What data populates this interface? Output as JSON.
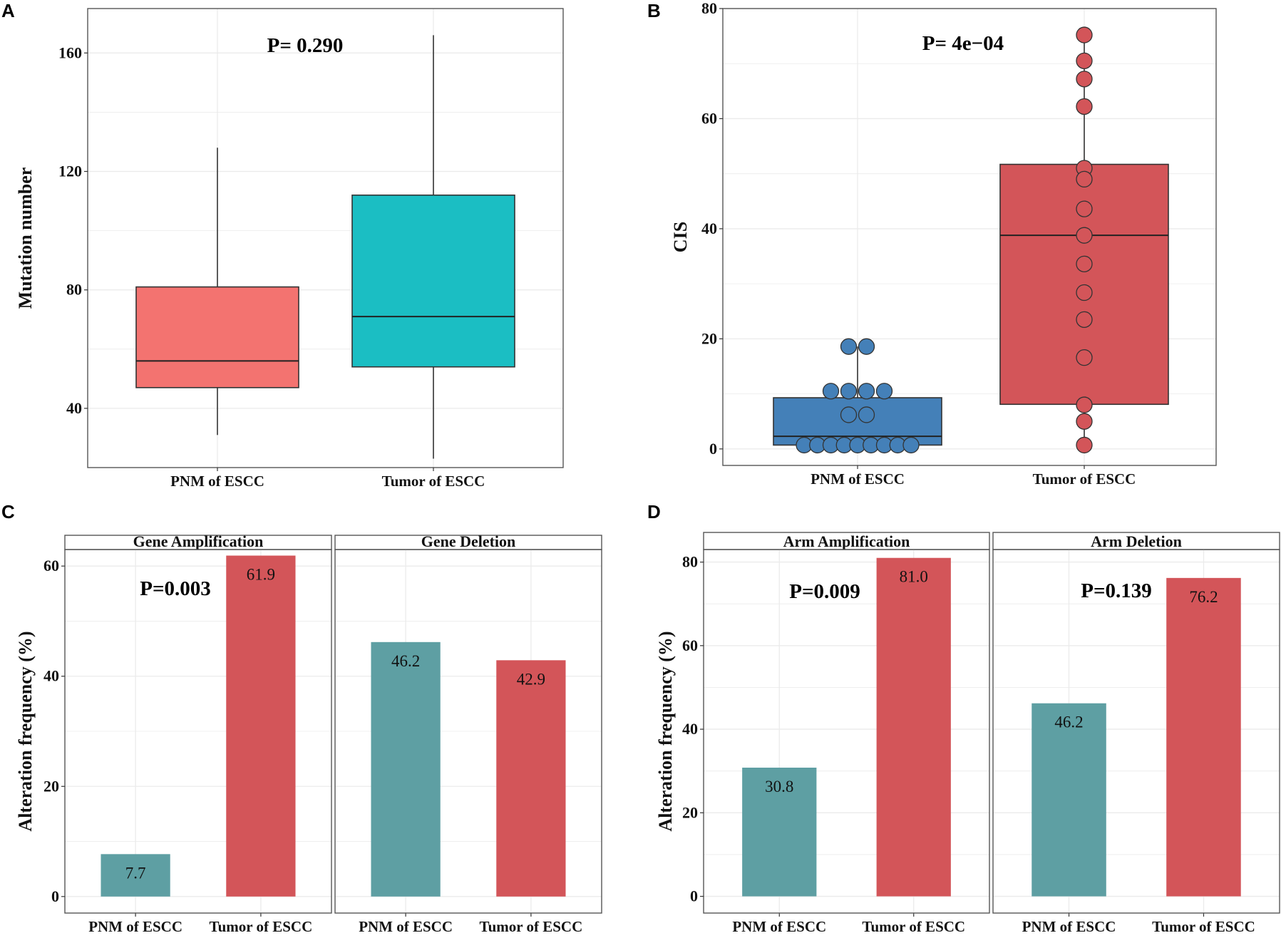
{
  "colors": {
    "pnm_box": "#F37370",
    "tumor_box": "#1BBEC3",
    "cis_pnm": "#4480B8",
    "cis_tumor": "#D35559",
    "bar_pnm": "#5E9FA3",
    "bar_tumor": "#D35559",
    "grid": "#EBEBEB",
    "frame": "#555555"
  },
  "chart_data": [
    {
      "panel": "A",
      "type": "box",
      "ylabel": "Mutation number",
      "xlabel": "",
      "ylim": [
        20,
        175
      ],
      "yticks": [
        40,
        80,
        120,
        160
      ],
      "annotation": "P= 0.290",
      "categories": [
        "PNM of ESCC",
        "Tumor of ESCC"
      ],
      "boxes": [
        {
          "name": "PNM of ESCC",
          "min": 31,
          "q1": 47,
          "median": 56,
          "q3": 81,
          "max": 128
        },
        {
          "name": "Tumor of ESCC",
          "min": 23,
          "q1": 54,
          "median": 71,
          "q3": 112,
          "max": 166
        }
      ]
    },
    {
      "panel": "B",
      "type": "box",
      "ylabel": "CIS",
      "xlabel": "",
      "ylim": [
        -3,
        80
      ],
      "yticks": [
        0,
        20,
        40,
        60,
        80
      ],
      "annotation": "P= 4e−04",
      "categories": [
        "PNM of ESCC",
        "Tumor of ESCC"
      ],
      "boxes": [
        {
          "name": "PNM of ESCC",
          "min": 0.7,
          "q1": 0.7,
          "median": 2.3,
          "q3": 9.3,
          "max": 18.6,
          "points": [
            18.6,
            18.6,
            10.5,
            10.5,
            10.5,
            10.5,
            6.2,
            6.2,
            0.7,
            0.7,
            0.7,
            0.7,
            0.7,
            0.7,
            0.7,
            0.7,
            0.7
          ]
        },
        {
          "name": "Tumor of ESCC",
          "min": 0.7,
          "q1": 8.1,
          "median": 38.8,
          "q3": 51.7,
          "max": 75.2,
          "points": [
            75.2,
            70.5,
            67.2,
            62.2,
            51,
            49,
            43.6,
            38.8,
            33.6,
            28.4,
            23.5,
            16.6,
            8,
            5,
            0.7
          ]
        }
      ]
    },
    {
      "panel": "C",
      "type": "bar",
      "ylabel": "Alteration frequency (%)",
      "ylim": [
        -3,
        63
      ],
      "yticks": [
        0,
        20,
        40,
        60
      ],
      "facets": [
        {
          "strip": "Gene Amplification",
          "annotation": "P=0.003",
          "categories": [
            "PNM of ESCC",
            "Tumor of ESCC"
          ],
          "values": [
            7.7,
            61.9
          ],
          "labels": [
            "7.7",
            "61.9"
          ]
        },
        {
          "strip": "Gene Deletion",
          "annotation": "",
          "categories": [
            "PNM of ESCC",
            "Tumor of ESCC"
          ],
          "values": [
            46.2,
            42.9
          ],
          "labels": [
            "46.2",
            "42.9"
          ]
        }
      ]
    },
    {
      "panel": "D",
      "type": "bar",
      "ylabel": "Alteration frequency (%)",
      "ylim": [
        -4,
        83
      ],
      "yticks": [
        0,
        20,
        40,
        60,
        80
      ],
      "facets": [
        {
          "strip": "Arm Amplification",
          "annotation": "P=0.009",
          "categories": [
            "PNM of ESCC",
            "Tumor of ESCC"
          ],
          "values": [
            30.8,
            81.0
          ],
          "labels": [
            "30.8",
            "81.0"
          ]
        },
        {
          "strip": "Arm Deletion",
          "annotation": "P=0.139",
          "categories": [
            "PNM of ESCC",
            "Tumor of ESCC"
          ],
          "values": [
            46.2,
            76.2
          ],
          "labels": [
            "46.2",
            "76.2"
          ]
        }
      ]
    }
  ]
}
